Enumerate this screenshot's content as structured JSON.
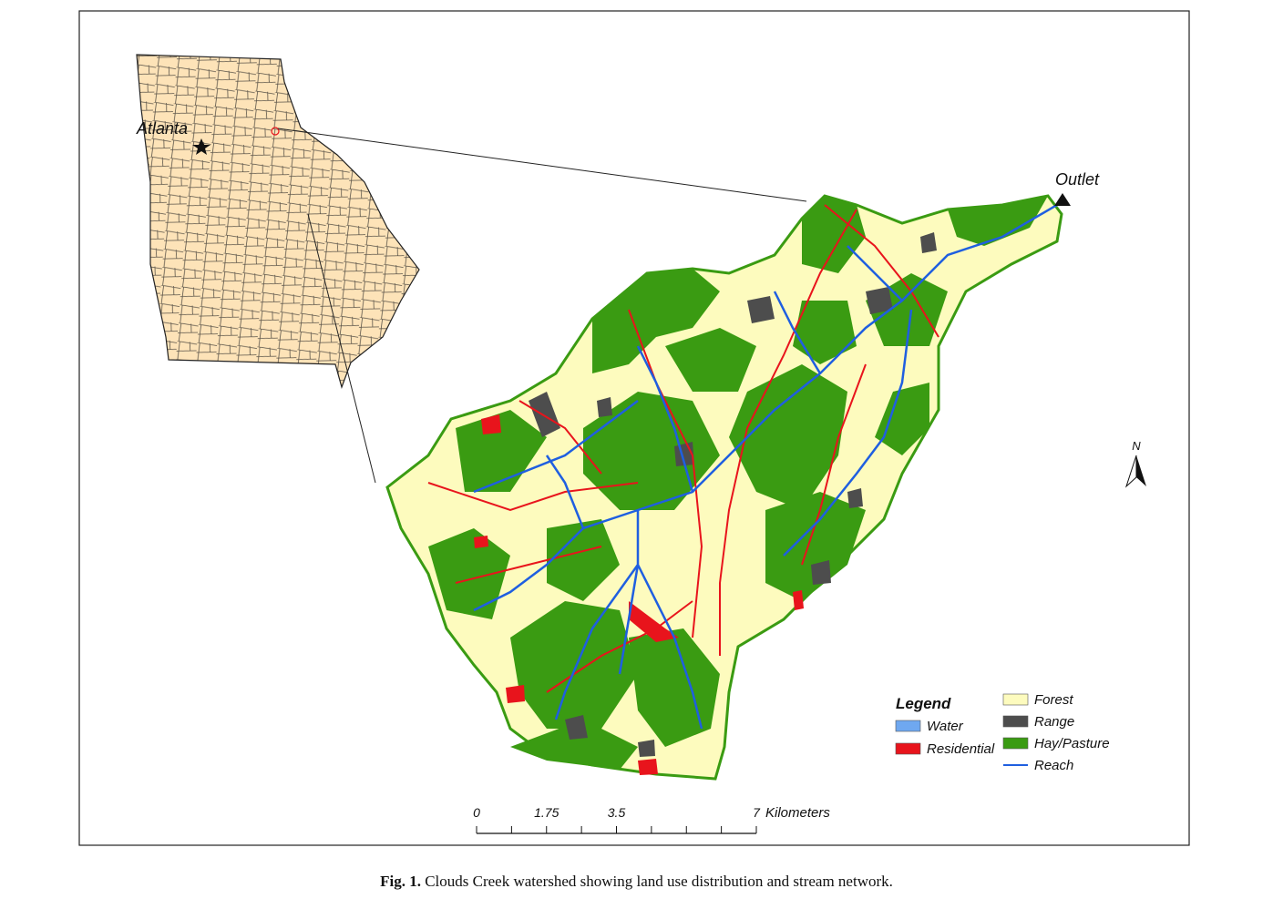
{
  "map": {
    "inset_label": "Atlanta",
    "outlet_label": "Outlet",
    "north_label": "N",
    "legend": {
      "title": "Legend",
      "items": [
        {
          "name": "Water",
          "color": "#6fa8f0",
          "symbol": "box"
        },
        {
          "name": "Residential",
          "color": "#e8141c",
          "symbol": "box"
        },
        {
          "name": "Forest",
          "color": "#fdfbbe",
          "symbol": "box"
        },
        {
          "name": "Range",
          "color": "#4d4d4d",
          "symbol": "box"
        },
        {
          "name": "Hay/Pasture",
          "color": "#3a9b12",
          "symbol": "box"
        },
        {
          "name": "Reach",
          "color": "#1f5fe0",
          "symbol": "line"
        }
      ]
    },
    "scale_bar": {
      "labels": [
        0,
        1.75,
        3.5,
        7
      ],
      "unit": "Kilometers"
    }
  },
  "caption": {
    "label": "Fig. 1.",
    "text": "Clouds Creek watershed showing land use distribution and stream network."
  }
}
